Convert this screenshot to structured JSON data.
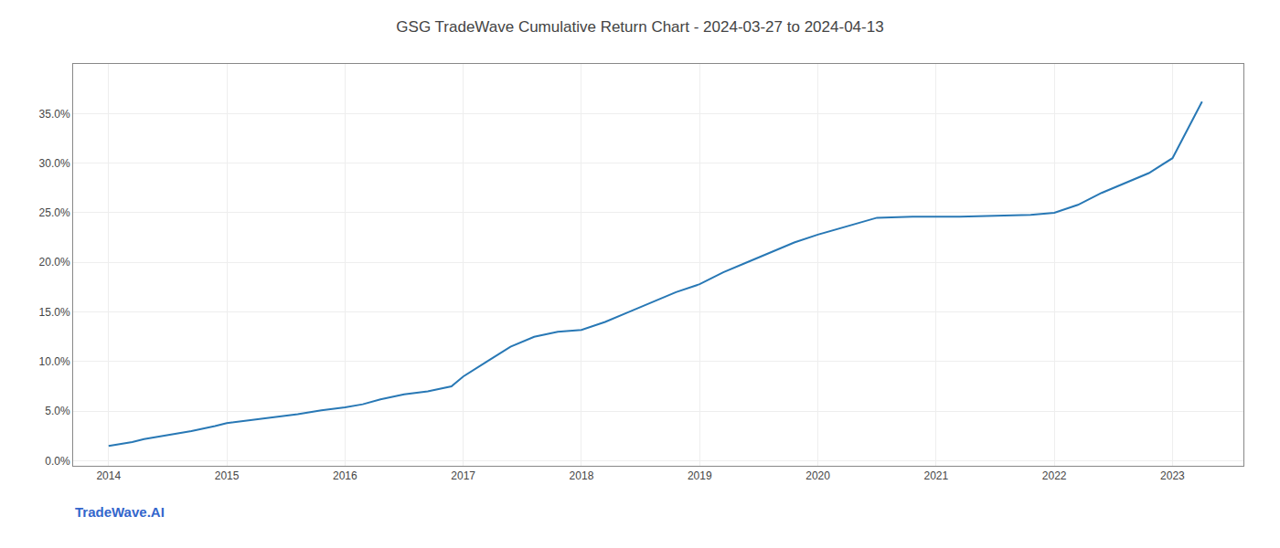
{
  "chart_data": {
    "type": "line",
    "title": "GSG TradeWave Cumulative Return Chart - 2024-03-27 to 2024-04-13",
    "annotations": [
      "TradeWave.AI"
    ],
    "color": "#2878b5",
    "grid": true,
    "x": [
      2014.0,
      2014.1,
      2014.2,
      2014.3,
      2014.5,
      2014.7,
      2014.9,
      2015.0,
      2015.2,
      2015.4,
      2015.6,
      2015.8,
      2016.0,
      2016.15,
      2016.3,
      2016.5,
      2016.7,
      2016.9,
      2017.0,
      2017.2,
      2017.4,
      2017.6,
      2017.8,
      2018.0,
      2018.2,
      2018.4,
      2018.6,
      2018.8,
      2019.0,
      2019.2,
      2019.4,
      2019.6,
      2019.8,
      2020.0,
      2020.2,
      2020.5,
      2020.8,
      2021.0,
      2021.2,
      2021.5,
      2021.8,
      2022.0,
      2022.2,
      2022.4,
      2022.6,
      2022.8,
      2023.0,
      2023.25
    ],
    "values": [
      1.5,
      1.7,
      1.9,
      2.2,
      2.6,
      3.0,
      3.5,
      3.8,
      4.1,
      4.4,
      4.7,
      5.1,
      5.4,
      5.7,
      6.2,
      6.7,
      7.0,
      7.5,
      8.5,
      10.0,
      11.5,
      12.5,
      13.0,
      13.2,
      14.0,
      15.0,
      16.0,
      17.0,
      17.8,
      19.0,
      20.0,
      21.0,
      22.0,
      22.8,
      23.5,
      24.5,
      24.6,
      24.6,
      24.6,
      24.7,
      24.8,
      25.0,
      25.8,
      27.0,
      28.0,
      29.0,
      30.5,
      36.2
    ],
    "xlim": [
      2013.7,
      2023.6
    ],
    "xticks": [
      2014,
      2015,
      2016,
      2017,
      2018,
      2019,
      2020,
      2021,
      2022,
      2023
    ],
    "ylim": [
      -0.5,
      40.0
    ],
    "yticks": [
      {
        "value": 0.0,
        "label": "0.0%"
      },
      {
        "value": 5.0,
        "label": "5.0%"
      },
      {
        "value": 10.0,
        "label": "10.0%"
      },
      {
        "value": 15.0,
        "label": "15.0%"
      },
      {
        "value": 20.0,
        "label": "20.0%"
      },
      {
        "value": 25.0,
        "label": "25.0%"
      },
      {
        "value": 30.0,
        "label": "30.0%"
      },
      {
        "value": 35.0,
        "label": "35.0%"
      }
    ]
  }
}
